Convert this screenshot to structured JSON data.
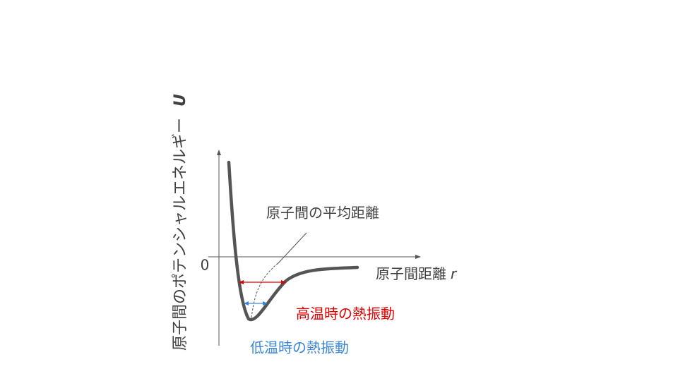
{
  "y_axis": {
    "text": "原子間のポテンシャルエネルギー",
    "symbol": "U"
  },
  "x_axis": {
    "text": "原子間距離",
    "symbol": "r"
  },
  "origin": "0",
  "annotations": {
    "mean_distance": "原子間の平均距離",
    "high_temp": "高温時の熱振動",
    "low_temp": "低温時の熱振動"
  }
}
